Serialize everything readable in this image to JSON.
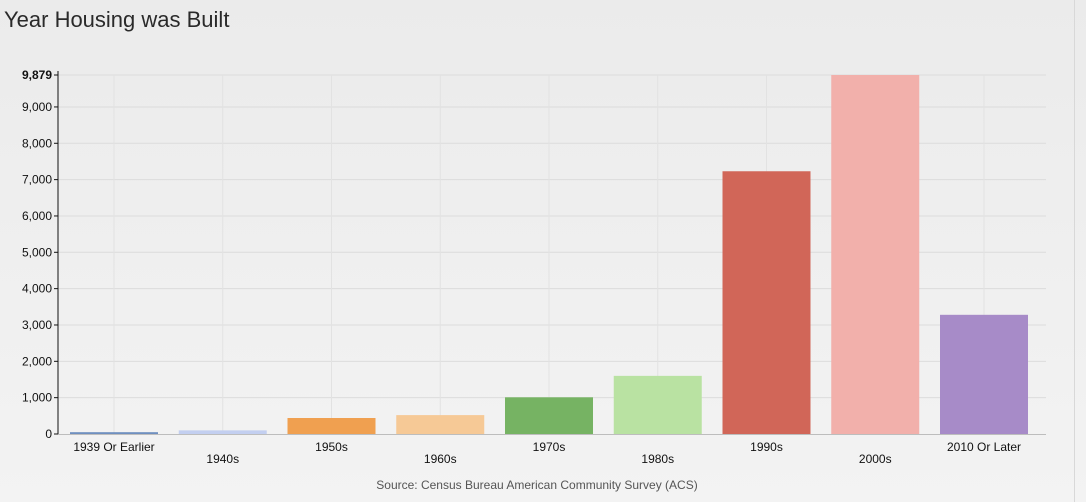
{
  "page": {
    "title": "Year Housing was Built",
    "source": "Source: Census Bureau American Community Survey (ACS)"
  },
  "chart_data": {
    "type": "bar",
    "title": "Year Housing was Built",
    "xlabel": "",
    "ylabel": "",
    "categories": [
      "1939 Or Earlier",
      "1940s",
      "1950s",
      "1960s",
      "1970s",
      "1980s",
      "1990s",
      "2000s",
      "2010 Or Later"
    ],
    "values": [
      50,
      100,
      440,
      520,
      1010,
      1600,
      7230,
      9879,
      3280
    ],
    "colors": [
      "#6f8fbf",
      "#c3cff0",
      "#f0a050",
      "#f6c996",
      "#76b363",
      "#b9e2a2",
      "#d16658",
      "#f2b0ab",
      "#a78bc8"
    ],
    "ylim": [
      0,
      9879
    ],
    "yticks": [
      0,
      1000,
      2000,
      3000,
      4000,
      5000,
      6000,
      7000,
      8000,
      9000,
      9879
    ],
    "ytick_labels": [
      "0",
      "1,000",
      "2,000",
      "3,000",
      "4,000",
      "5,000",
      "6,000",
      "7,000",
      "8,000",
      "9,000",
      "9,879"
    ],
    "grid": true,
    "legend": "none"
  }
}
